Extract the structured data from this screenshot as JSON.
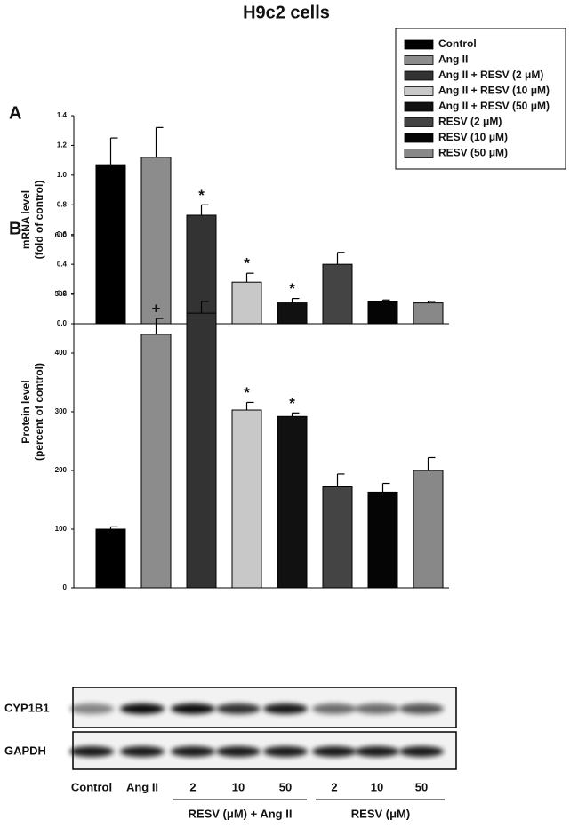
{
  "title": "H9c2 cells",
  "chart_data": [
    {
      "type": "bar",
      "panel": "A",
      "ylabel": [
        "mRNA level",
        "(fold of control)"
      ],
      "ylim": [
        0,
        1.4
      ],
      "yticks": [
        {
          "value": 0,
          "label": "0.0"
        },
        0.2,
        0.4,
        0.6,
        0.8,
        {
          "value": 1,
          "label": "1.0"
        },
        1.2,
        1.4
      ],
      "series": [
        {
          "name": "Control",
          "color": "#000000",
          "values": [
            1.07
          ],
          "errors": [
            0.18
          ]
        },
        {
          "name": "Ang II",
          "color": "#8c8c8c",
          "values": [
            1.12
          ],
          "errors": [
            0.2
          ]
        },
        {
          "name": "Ang II + RESV (2 μM)",
          "color": "#333333",
          "values": [
            0.73
          ],
          "errors": [
            0.07
          ],
          "annotation": "*"
        },
        {
          "name": "Ang II + RESV (10 μM)",
          "color": "#c8c8c8",
          "values": [
            0.28
          ],
          "errors": [
            0.06
          ],
          "annotation": "*"
        },
        {
          "name": "Ang II + RESV (50 μM)",
          "color": "#111111",
          "values": [
            0.14
          ],
          "errors": [
            0.03
          ],
          "annotation": "*"
        },
        {
          "name": "RESV (2 μM)",
          "color": "#444444",
          "values": [
            0.4
          ],
          "errors": [
            0.08
          ]
        },
        {
          "name": "RESV (10 μM)",
          "color": "#050505",
          "values": [
            0.15
          ],
          "errors": [
            0.01
          ]
        },
        {
          "name": "RESV (50 μM)",
          "color": "#888888",
          "values": [
            0.14
          ],
          "errors": [
            0.01
          ]
        }
      ]
    },
    {
      "type": "bar",
      "panel": "B",
      "ylabel": [
        "Protein level",
        "(percent of control)"
      ],
      "ylim": [
        0,
        600
      ],
      "yticks": [
        0,
        100,
        200,
        300,
        400,
        500,
        600
      ],
      "series": [
        {
          "color": "#000000",
          "values": [
            100
          ],
          "errors": [
            4
          ]
        },
        {
          "color": "#8c8c8c",
          "values": [
            432
          ],
          "errors": [
            27
          ],
          "annotation": "+"
        },
        {
          "color": "#333333",
          "values": [
            468
          ],
          "errors": [
            20
          ]
        },
        {
          "color": "#c8c8c8",
          "values": [
            303
          ],
          "errors": [
            13
          ],
          "annotation": "*"
        },
        {
          "color": "#111111",
          "values": [
            292
          ],
          "errors": [
            6
          ],
          "annotation": "*"
        },
        {
          "color": "#444444",
          "values": [
            172
          ],
          "errors": [
            22
          ]
        },
        {
          "color": "#050505",
          "values": [
            163
          ],
          "errors": [
            15
          ]
        },
        {
          "color": "#888888",
          "values": [
            200
          ],
          "errors": [
            22
          ]
        }
      ]
    }
  ],
  "blot": {
    "rows": [
      "CYP1B1",
      "GAPDH"
    ],
    "lanes": [
      "Control",
      "Ang II",
      "2",
      "10",
      "50",
      "2",
      "10",
      "50"
    ],
    "groups": [
      "RESV (μM) + Ang II",
      "RESV (μM)"
    ]
  }
}
